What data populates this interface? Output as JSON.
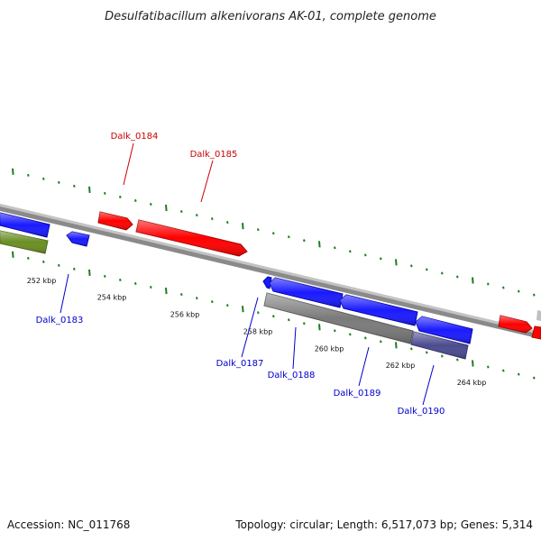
{
  "title": "Desulfatibacillum alkenivorans AK-01, complete genome",
  "accession": "Accession: NC_011768",
  "summary": "Topology: circular; Length: 6,517,073 bp; Genes: 5,314",
  "colors": {
    "backbone": "#8a8a8a",
    "forward_gene": "#ff0000",
    "reverse_gene": "#1a1aff",
    "ticks": "#1e7d1e",
    "grey_track": "#808080",
    "olive_track": "#6b8e23",
    "slate_track": "#4b4b8f"
  },
  "scale_ticks": [
    "252 kbp",
    "254 kbp",
    "256 kbp",
    "258 kbp",
    "260 kbp",
    "262 kbp",
    "264 kbp"
  ],
  "gene_labels": [
    {
      "name": "Dalk_0184",
      "strand": "forward"
    },
    {
      "name": "Dalk_0185",
      "strand": "forward"
    },
    {
      "name": "Dalk_0183",
      "strand": "reverse"
    },
    {
      "name": "Dalk_0187",
      "strand": "reverse"
    },
    {
      "name": "Dalk_0188",
      "strand": "reverse"
    },
    {
      "name": "Dalk_0189",
      "strand": "reverse"
    },
    {
      "name": "Dalk_0190",
      "strand": "reverse"
    }
  ]
}
